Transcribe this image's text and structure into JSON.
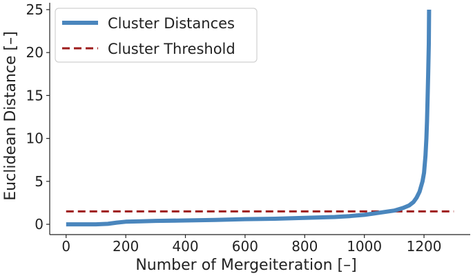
{
  "chart_data": {
    "type": "line",
    "title": "",
    "xlabel": "Number of Mergeiteration [–]",
    "ylabel": "Euclidean Distance [–]",
    "xlim": [
      -55,
      1355
    ],
    "ylim": [
      -1.2,
      25.8
    ],
    "xticks": [
      0,
      200,
      400,
      600,
      800,
      1000,
      1200
    ],
    "yticks": [
      0,
      5,
      10,
      15,
      20,
      25
    ],
    "grid": false,
    "legend_position": "top-left",
    "colors": {
      "distances": "#4a86bd",
      "threshold": "#9e1b1b"
    },
    "series": [
      {
        "name": "Cluster Distances",
        "style": "solid",
        "x": [
          0,
          50,
          100,
          140,
          170,
          200,
          250,
          300,
          400,
          500,
          600,
          700,
          800,
          900,
          950,
          1000,
          1050,
          1100,
          1130,
          1150,
          1165,
          1175,
          1185,
          1195,
          1200,
          1205,
          1208,
          1210,
          1212,
          1214,
          1216,
          1217
        ],
        "y": [
          0.0,
          0.0,
          0.0,
          0.05,
          0.2,
          0.3,
          0.35,
          0.4,
          0.45,
          0.5,
          0.6,
          0.65,
          0.75,
          0.85,
          0.95,
          1.1,
          1.35,
          1.6,
          1.9,
          2.2,
          2.6,
          3.1,
          3.8,
          5.0,
          6.0,
          8.0,
          10.0,
          12.0,
          14.5,
          17.5,
          21.0,
          25.0
        ]
      },
      {
        "name": "Cluster Threshold",
        "style": "dashed",
        "x": [
          0,
          1300
        ],
        "y": [
          1.5,
          1.5
        ]
      }
    ]
  }
}
